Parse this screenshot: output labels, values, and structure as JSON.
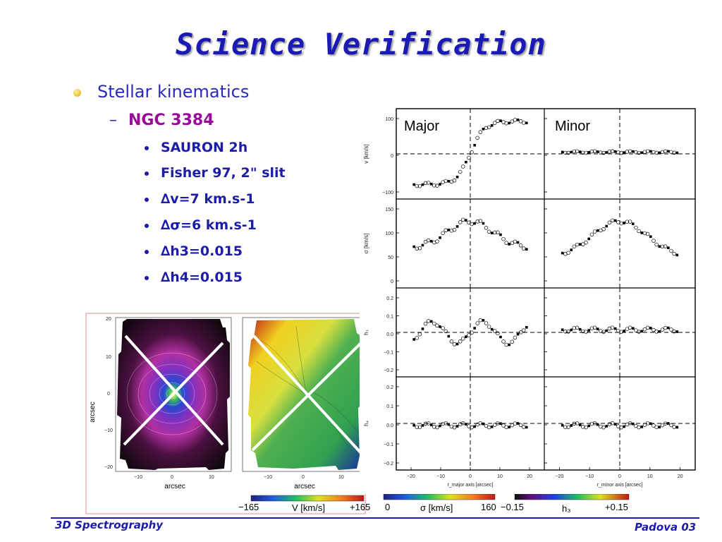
{
  "slide": {
    "title": "Science Verification",
    "bullet1": "Stellar kinematics",
    "bullet2": "NGC 3384",
    "sub_bullets": [
      "SAURON 2h",
      "Fisher 97, 2\" slit",
      "∆v=7 km.s-1",
      "∆σ=6 km.s-1",
      "∆h3=0.015",
      "∆h4=0.015"
    ],
    "footer_left": "3D Spectrography",
    "footer_right": "Padova 03"
  },
  "kinematics_panel": {
    "label_left": "Major",
    "label_right": "Minor",
    "row_ylabels": [
      "v [km/s]",
      "σ [km/s]",
      "h₃",
      "h₄"
    ],
    "row_ticks": [
      [
        "100",
        "0",
        "−100"
      ],
      [
        "150",
        "100",
        "50",
        "0"
      ],
      [
        "0.2",
        "0.1",
        "0.0",
        "−0.1",
        "−0.2"
      ],
      [
        "0.2",
        "0.1",
        "0.0",
        "−0.1",
        "−0.2"
      ]
    ],
    "x_ticks_major": [
      "−20",
      "−10",
      "0",
      "10",
      "20"
    ],
    "x_ticks_minor": [
      "−20",
      "−10",
      "0",
      "10",
      "20"
    ],
    "x_label_major": "r_major axis [arcsec]",
    "x_label_minor": "r_minor axis [arcsec]"
  },
  "maps": {
    "axis_label_y": "arcsec",
    "axis_label_x1": "arcsec",
    "axis_label_x2": "arcsec",
    "y_ticks": [
      "20",
      "10",
      "0",
      "−10",
      "−20"
    ],
    "x_ticks": [
      "−10",
      "0",
      "10"
    ],
    "colorbars": [
      {
        "min": "−165",
        "label": "V  [km/s]",
        "max": "+165"
      },
      {
        "min": "0",
        "label": "σ   [km/s]",
        "max": "160"
      },
      {
        "min": "−0.15",
        "label": "h₃",
        "max": "+0.15"
      }
    ]
  },
  "colors": {
    "title": "#1a1ab4",
    "bullet": "#2a2ab8",
    "highlight": "#9a0a9a",
    "frame": "#e8a0a0"
  }
}
